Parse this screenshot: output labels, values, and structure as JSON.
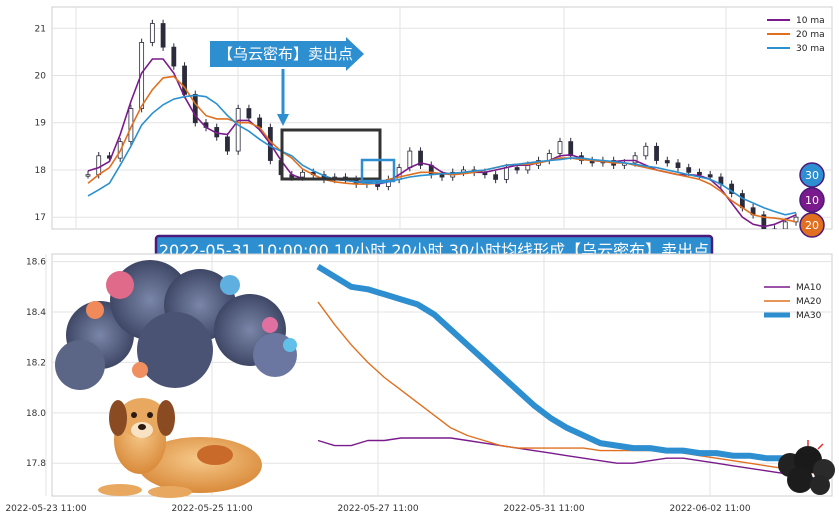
{
  "chart_data": [
    {
      "type": "candlestick",
      "panel": "top",
      "ylim": [
        16.75,
        21.45
      ],
      "yticks": [
        "17",
        "18",
        "19",
        "20",
        "21"
      ],
      "grid": true,
      "legend": {
        "placement": "top-right",
        "entries": [
          "10 ma",
          "20 ma",
          "30 ma"
        ]
      },
      "series": [
        {
          "name": "10 ma",
          "color": "#7a1a8c",
          "values": [
            17.98,
            18.05,
            18.18,
            18.75,
            19.45,
            20.05,
            20.35,
            20.35,
            20.05,
            19.55,
            19.15,
            18.9,
            18.78,
            18.75,
            19.05,
            19.05,
            18.85,
            18.55,
            18.2,
            17.9,
            17.82,
            17.8,
            17.8,
            17.8,
            17.78,
            17.75,
            17.75,
            17.7,
            17.75,
            17.9,
            18.05,
            18.15,
            18.1,
            17.95,
            17.9,
            17.95,
            17.95,
            17.95,
            18.0,
            18.05,
            18.1,
            18.1,
            18.15,
            18.2,
            18.3,
            18.32,
            18.25,
            18.2,
            18.18,
            18.18,
            18.2,
            18.2,
            18.1,
            18.0,
            17.95,
            17.9,
            17.9,
            17.88,
            17.8,
            17.6,
            17.3,
            17.0,
            16.85,
            16.8,
            16.85,
            16.95,
            17.05
          ]
        },
        {
          "name": "20 ma",
          "color": "#e07020",
          "values": [
            17.72,
            17.9,
            18.05,
            18.4,
            18.9,
            19.35,
            19.7,
            19.95,
            19.98,
            19.75,
            19.4,
            19.15,
            19.08,
            19.08,
            19.0,
            19.0,
            18.9,
            18.6,
            18.4,
            18.25,
            18.02,
            17.9,
            17.8,
            17.75,
            17.72,
            17.7,
            17.7,
            17.72,
            17.8,
            17.85,
            17.9,
            17.95,
            17.95,
            17.92,
            17.9,
            17.92,
            17.95,
            18.0,
            18.05,
            18.1,
            18.12,
            18.12,
            18.15,
            18.2,
            18.25,
            18.25,
            18.22,
            18.2,
            18.18,
            18.15,
            18.15,
            18.1,
            18.05,
            18.0,
            17.95,
            17.9,
            17.85,
            17.8,
            17.7,
            17.55,
            17.35,
            17.2,
            17.05,
            17.0,
            16.98,
            16.95,
            16.9
          ]
        },
        {
          "name": "30 ma",
          "color": "#2b90cf",
          "values": [
            17.45,
            17.58,
            17.72,
            18.1,
            18.5,
            18.95,
            19.2,
            19.38,
            19.5,
            19.55,
            19.58,
            19.55,
            19.4,
            19.15,
            18.95,
            18.82,
            18.65,
            18.5,
            18.4,
            18.3,
            18.1,
            17.98,
            17.88,
            17.8,
            17.78,
            17.75,
            17.72,
            17.72,
            17.75,
            17.8,
            17.85,
            17.88,
            17.9,
            17.92,
            17.93,
            17.95,
            17.98,
            18.0,
            18.05,
            18.1,
            18.12,
            18.15,
            18.18,
            18.2,
            18.22,
            18.25,
            18.25,
            18.22,
            18.2,
            18.18,
            18.15,
            18.12,
            18.08,
            18.05,
            18.0,
            17.95,
            17.9,
            17.85,
            17.8,
            17.7,
            17.55,
            17.4,
            17.3,
            17.2,
            17.12,
            17.05,
            17.1
          ]
        }
      ],
      "candles": [
        17.9,
        18.3,
        18.25,
        18.6,
        19.3,
        20.7,
        21.1,
        20.6,
        20.2,
        19.6,
        19.0,
        18.9,
        18.7,
        18.4,
        19.3,
        19.1,
        18.9,
        18.2,
        17.9,
        17.85,
        17.95,
        17.9,
        17.8,
        17.85,
        17.8,
        17.7,
        17.75,
        17.65,
        17.8,
        18.05,
        18.4,
        18.1,
        17.9,
        17.85,
        17.95,
        18.0,
        17.95,
        17.9,
        17.8,
        18.05,
        18.0,
        18.1,
        18.2,
        18.35,
        18.6,
        18.3,
        18.2,
        18.15,
        18.2,
        18.1,
        18.15,
        18.3,
        18.5,
        18.2,
        18.15,
        18.05,
        17.95,
        17.9,
        17.85,
        17.7,
        17.5,
        17.2,
        17.05,
        16.7,
        16.75,
        16.9,
        17.0
      ],
      "annotations": [
        "【乌云密布】卖出点"
      ],
      "badges": [
        "30",
        "10",
        "20"
      ]
    },
    {
      "type": "line",
      "panel": "bottom",
      "ylim": [
        17.67,
        18.63
      ],
      "yticks": [
        "17.8",
        "18.0",
        "18.2",
        "18.4",
        "18.6"
      ],
      "xticks": [
        "2022-05-23 11:00",
        "2022-05-25 11:00",
        "2022-05-27 11:00",
        "2022-05-31 11:00",
        "2022-06-02 11:00"
      ],
      "grid": true,
      "legend": {
        "placement": "top-right",
        "entries": [
          "MA10",
          "MA20",
          "MA30"
        ]
      },
      "series": [
        {
          "name": "MA10",
          "color": "#7a1a8c",
          "values": [
            17.89,
            17.87,
            17.87,
            17.89,
            17.89,
            17.9,
            17.9,
            17.9,
            17.9,
            17.89,
            17.88,
            17.87,
            17.86,
            17.85,
            17.84,
            17.83,
            17.82,
            17.81,
            17.8,
            17.8,
            17.81,
            17.82,
            17.82,
            17.81,
            17.8,
            17.79,
            17.78,
            17.77,
            17.76,
            17.75,
            17.74
          ]
        },
        {
          "name": "MA20",
          "color": "#e07020",
          "values": [
            18.44,
            18.35,
            18.27,
            18.2,
            18.14,
            18.09,
            18.04,
            17.99,
            17.94,
            17.91,
            17.89,
            17.87,
            17.86,
            17.86,
            17.86,
            17.86,
            17.86,
            17.85,
            17.85,
            17.85,
            17.85,
            17.85,
            17.84,
            17.83,
            17.82,
            17.81,
            17.8,
            17.79,
            17.78,
            17.77,
            17.76
          ]
        },
        {
          "name": "MA30",
          "color": "#2d8ed0",
          "values": [
            18.58,
            18.54,
            18.5,
            18.49,
            18.47,
            18.45,
            18.43,
            18.39,
            18.33,
            18.27,
            18.21,
            18.15,
            18.09,
            18.03,
            17.98,
            17.94,
            17.91,
            17.88,
            17.87,
            17.86,
            17.86,
            17.85,
            17.85,
            17.84,
            17.84,
            17.83,
            17.83,
            17.82,
            17.82,
            17.81,
            17.8
          ]
        }
      ]
    }
  ],
  "banner": {
    "text": "2022-05-31 10:00:00 10小时,20小时,30小时均线形成【乌云密布】卖出点"
  },
  "colors": {
    "callout": "#2d8ed0",
    "banner_bg": "#2d8ed0",
    "banner_border": "#4b1a7a",
    "box": "#333333"
  }
}
